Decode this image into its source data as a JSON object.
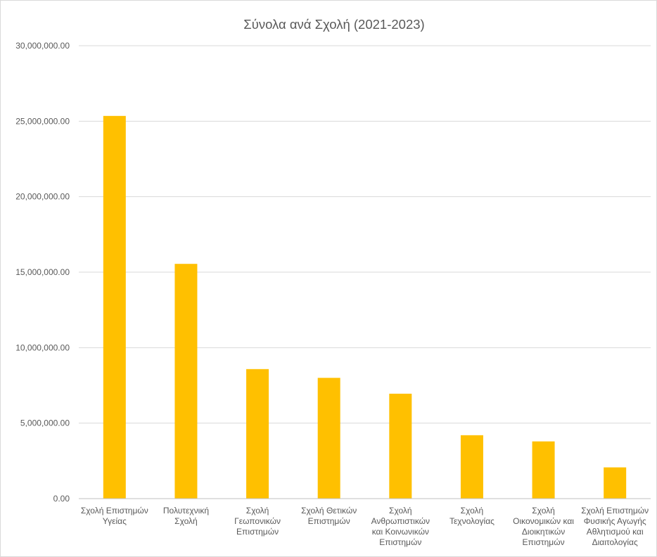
{
  "chart_data": {
    "type": "bar",
    "title": "Σύνολα ανά Σχολή (2021-2023)",
    "xlabel": "",
    "ylabel": "",
    "ylim": [
      0,
      30000000
    ],
    "yticks": [
      0,
      5000000,
      10000000,
      15000000,
      20000000,
      25000000,
      30000000
    ],
    "ytick_labels": [
      "0.00",
      "5,000,000.00",
      "10,000,000.00",
      "15,000,000.00",
      "20,000,000.00",
      "25,000,000.00",
      "30,000,000.00"
    ],
    "grid": true,
    "legend": "none",
    "bar_color": "#FFC000",
    "categories": [
      [
        "Σχολή Επιστημών",
        "Υγείας"
      ],
      [
        "Πολυτεχνική",
        "Σχολή"
      ],
      [
        "Σχολή",
        "Γεωπονικών",
        "Επιστημών"
      ],
      [
        "Σχολή Θετικών",
        "Επιστημών"
      ],
      [
        "Σχολή",
        "Ανθρωπιστικών",
        "και Κοινωνικών",
        "Επιστημών"
      ],
      [
        "Σχολή",
        "Τεχνολογίας"
      ],
      [
        "Σχολή",
        "Οικονομικών και",
        "Διοικητικών",
        "Επιστημών"
      ],
      [
        "Σχολή Επιστημών",
        "Φυσικής Αγωγής",
        "Αθλητισμού και",
        "Διαιτολογίας"
      ]
    ],
    "values": [
      25350000,
      15550000,
      8580000,
      8000000,
      6950000,
      4200000,
      3790000,
      2070000
    ]
  }
}
